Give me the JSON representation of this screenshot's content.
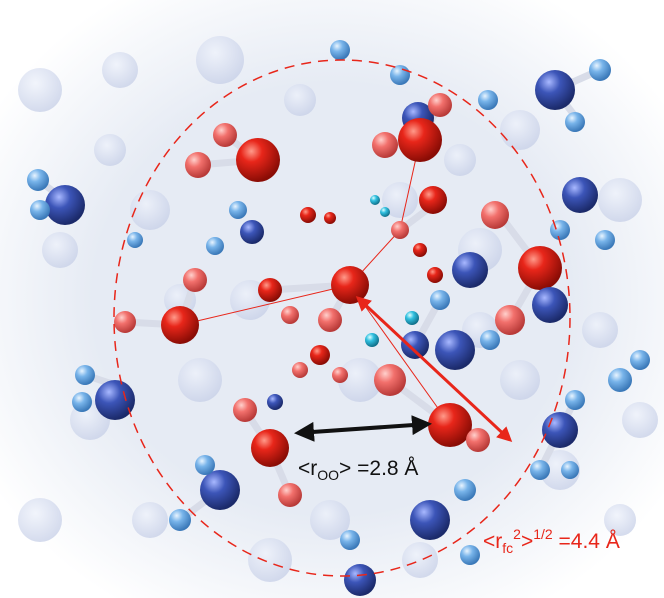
{
  "labels": {
    "oo": {
      "pre": "<r",
      "sub": "OO",
      "post": "> =2.8 Å"
    },
    "fc": {
      "pre": "<r",
      "sub": "fc",
      "sup": "2",
      "mid": ">",
      "sup2": "1/2",
      "post": " =4.4 Å"
    }
  }
}
